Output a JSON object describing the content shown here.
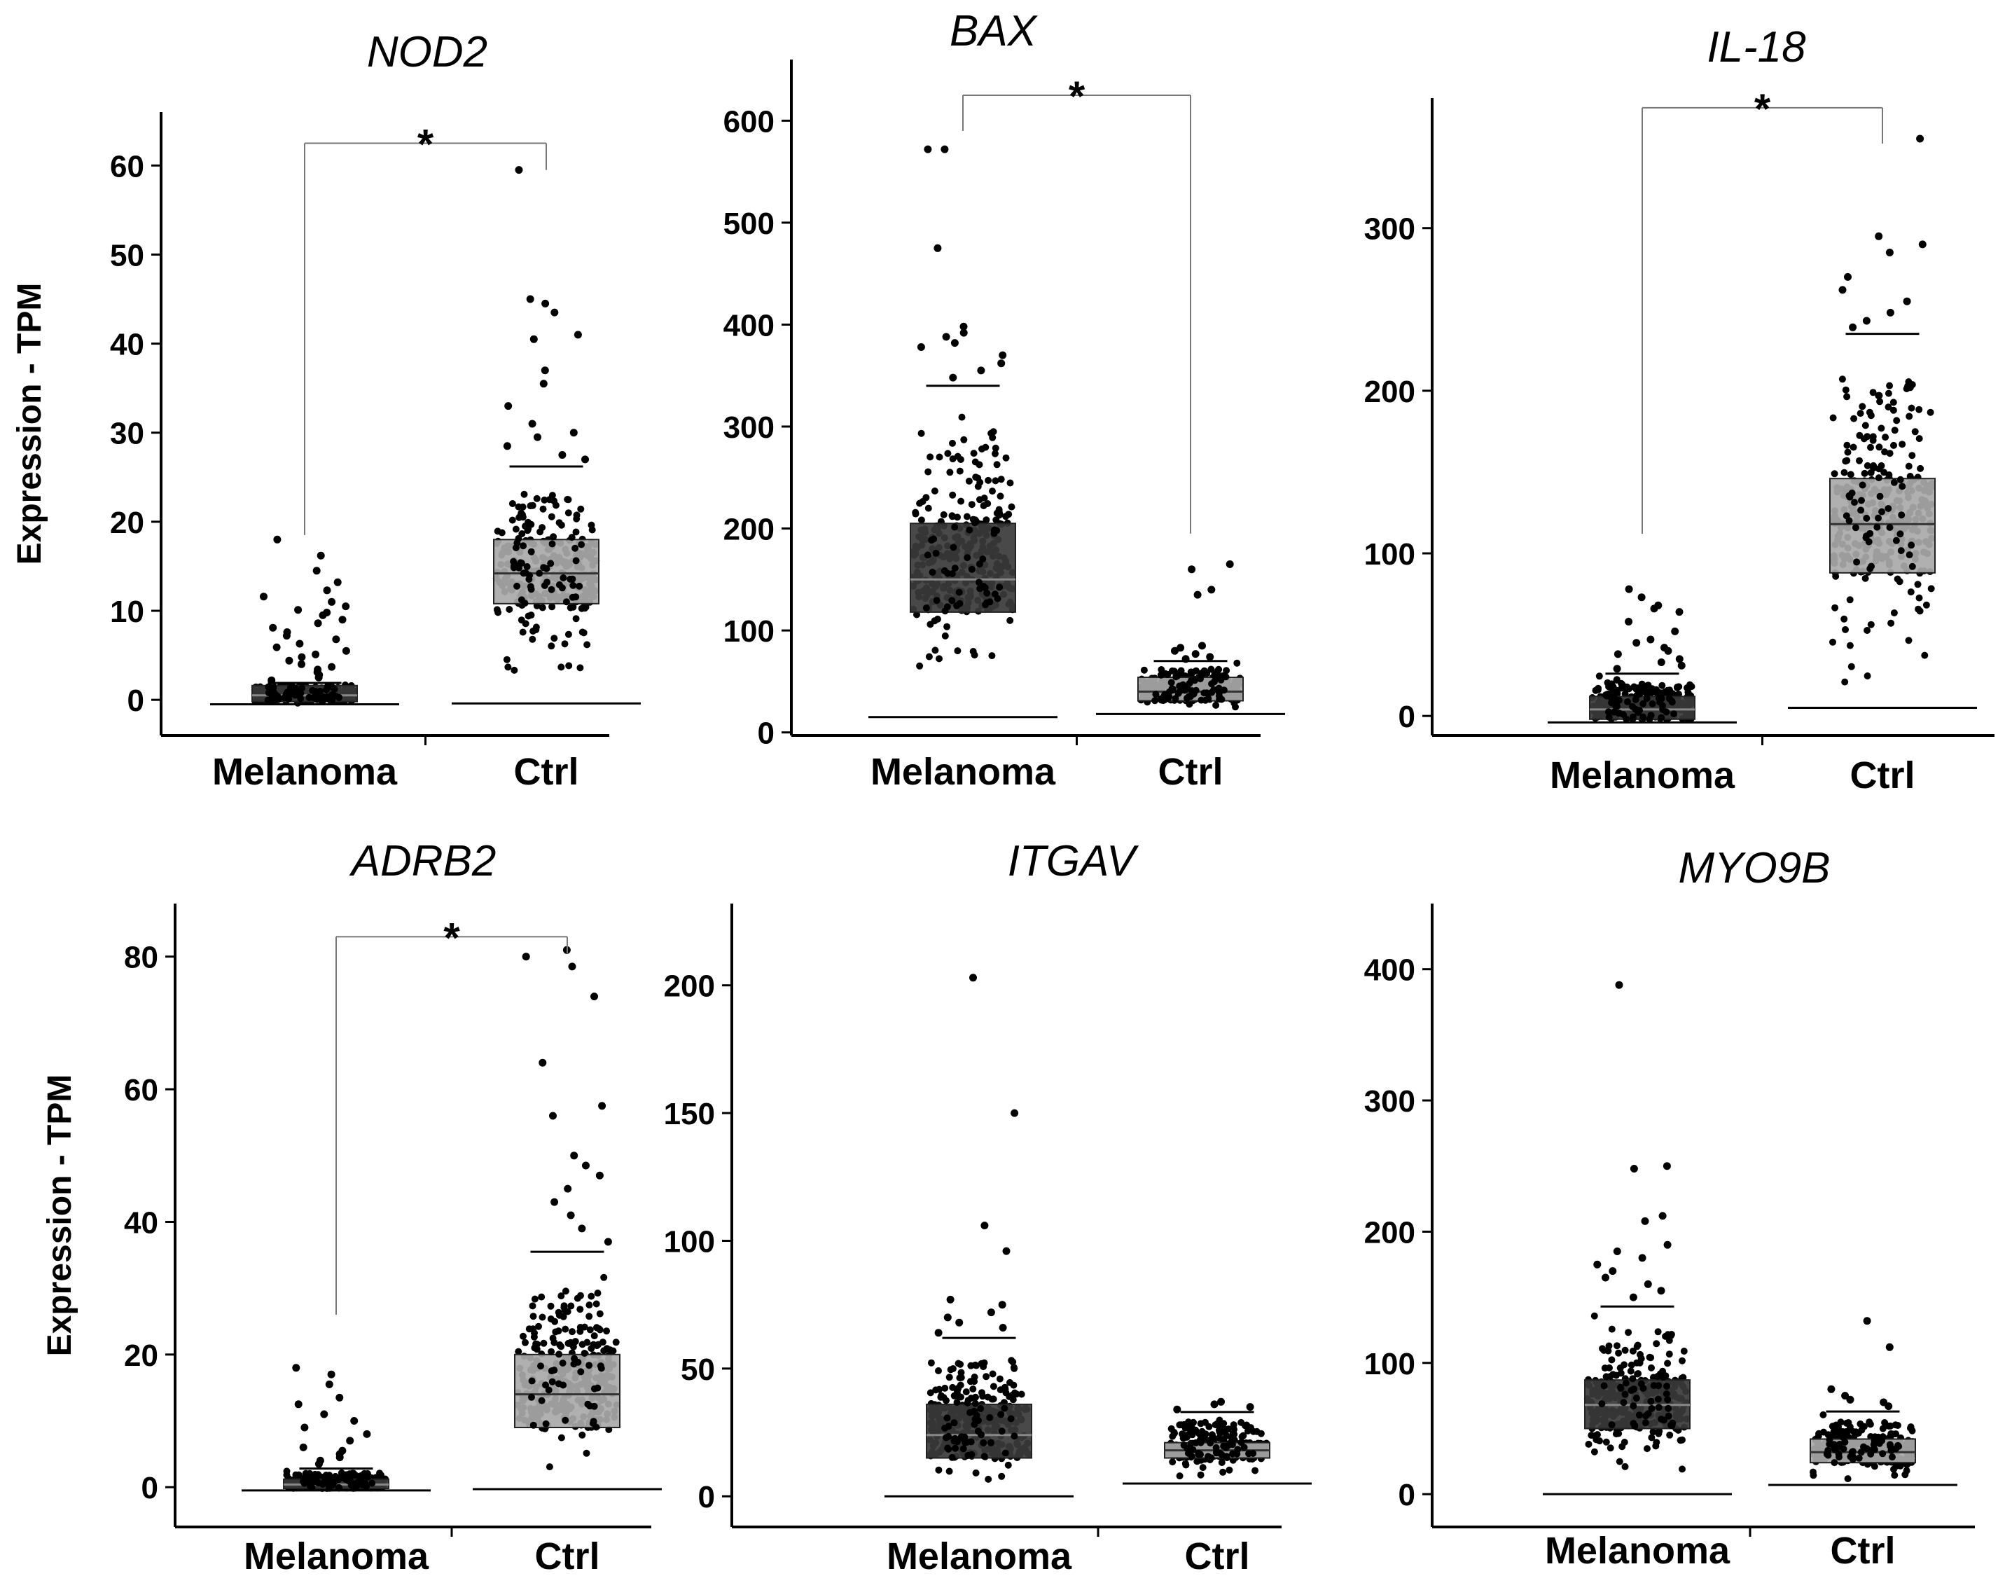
{
  "figure": {
    "background": "#ffffff",
    "colors": {
      "melanoma_box": "#3a3a3a",
      "ctrl_box": "#a9a9a9",
      "points": "#000000",
      "axis": "#000000",
      "bracket": "#777777"
    }
  },
  "chart_data": [
    {
      "type": "box",
      "title": "NOD2",
      "ylabel": "Expression - TPM",
      "categories": [
        "Melanoma",
        "Ctrl"
      ],
      "ylim": [
        -4,
        66
      ],
      "yticks": [
        0,
        10,
        20,
        30,
        40,
        50,
        60
      ],
      "series": [
        {
          "name": "Melanoma",
          "q1": -0.2,
          "median": 0.5,
          "q3": 1.6,
          "whisker_low": -0.5,
          "whisker_high": 1.9,
          "outliers": [
            18.0,
            16.2,
            14.5,
            13.2,
            12.3,
            11.6,
            11.0,
            10.5,
            10.1,
            9.8,
            9.5,
            9.0,
            8.6,
            8.1,
            7.6,
            7.2,
            6.8,
            6.3,
            5.9,
            5.5,
            5.1,
            4.8,
            4.4,
            4.0,
            3.7,
            3.4,
            3.1,
            2.8,
            2.5,
            2.2
          ]
        },
        {
          "name": "Ctrl",
          "q1": 10.8,
          "median": 14.2,
          "q3": 18.0,
          "whisker_low": -0.4,
          "whisker_high": 26.2,
          "outliers": [
            59.5,
            45.0,
            44.5,
            43.5,
            41.0,
            40.5,
            37.0,
            35.5,
            33.0,
            31.0,
            30.0,
            29.5,
            28.5,
            27.5,
            27.0
          ]
        }
      ],
      "significance": {
        "label": "*",
        "from": "Melanoma",
        "to": "Ctrl",
        "y_start": [
          18.5,
          59.5
        ],
        "y_bar": 62.5
      }
    },
    {
      "type": "box",
      "title": "BAX",
      "categories": [
        "Melanoma",
        "Ctrl"
      ],
      "ylim": [
        -3,
        660
      ],
      "yticks": [
        0,
        100,
        200,
        300,
        400,
        500,
        600
      ],
      "series": [
        {
          "name": "Melanoma",
          "q1": 118,
          "median": 150,
          "q3": 205,
          "whisker_low": 15,
          "whisker_high": 340,
          "outliers": [
            572,
            572,
            475,
            398,
            392,
            388,
            382,
            378,
            370,
            362,
            355,
            348
          ]
        },
        {
          "name": "Ctrl",
          "q1": 31,
          "median": 40,
          "q3": 54,
          "whisker_low": 18,
          "whisker_high": 70,
          "outliers": [
            165,
            160,
            140,
            135,
            85,
            83,
            80,
            77,
            74,
            72
          ]
        }
      ],
      "significance": {
        "label": "*",
        "from": "Melanoma",
        "to": "Ctrl",
        "y_start": [
          590,
          195
        ],
        "y_bar": 625
      }
    },
    {
      "type": "box",
      "title": "IL-18",
      "categories": [
        "Melanoma",
        "Ctrl"
      ],
      "ylim": [
        -12,
        380
      ],
      "yticks": [
        0,
        100,
        200,
        300
      ],
      "series": [
        {
          "name": "Melanoma",
          "q1": -2,
          "median": 4,
          "q3": 12,
          "whisker_low": -4,
          "whisker_high": 26,
          "outliers": [
            78,
            73,
            68,
            66,
            64,
            58,
            52,
            47,
            45,
            42,
            40,
            38,
            35,
            33,
            31,
            29
          ]
        },
        {
          "name": "Ctrl",
          "q1": 88,
          "median": 118,
          "q3": 146,
          "whisker_low": 5,
          "whisker_high": 235,
          "outliers": [
            355,
            295,
            290,
            285,
            270,
            262,
            255,
            248,
            243,
            239
          ]
        }
      ],
      "significance": {
        "label": "*",
        "from": "Melanoma",
        "to": "Ctrl",
        "y_start": [
          112,
          352
        ],
        "y_bar": 374
      }
    },
    {
      "type": "box",
      "title": "ADRB2",
      "ylabel": "Expression - TPM",
      "categories": [
        "Melanoma",
        "Ctrl"
      ],
      "ylim": [
        -6,
        88
      ],
      "yticks": [
        0,
        20,
        40,
        60,
        80
      ],
      "series": [
        {
          "name": "Melanoma",
          "q1": -0.2,
          "median": 0.4,
          "q3": 1.2,
          "whisker_low": -0.5,
          "whisker_high": 2.8,
          "outliers": [
            18.0,
            17.0,
            15.5,
            13.5,
            12.5,
            11.0,
            10.0,
            9.0,
            8.0,
            7.0,
            6.0,
            5.5,
            5.0,
            4.5,
            4.0,
            3.5
          ]
        },
        {
          "name": "Ctrl",
          "q1": 9.0,
          "median": 14.0,
          "q3": 20.0,
          "whisker_low": -0.3,
          "whisker_high": 35.5,
          "outliers": [
            81.0,
            80.0,
            78.5,
            74.0,
            64.0,
            57.5,
            56.0,
            50.0,
            48.5,
            47.0,
            45.0,
            43.0,
            41.0,
            39.0,
            37.0
          ]
        }
      ],
      "significance": {
        "label": "*",
        "from": "Melanoma",
        "to": "Ctrl",
        "y_start": [
          26,
          80.5
        ],
        "y_bar": 83
      }
    },
    {
      "type": "box",
      "title": "ITGAV",
      "categories": [
        "Melanoma",
        "Ctrl"
      ],
      "ylim": [
        -12,
        232
      ],
      "yticks": [
        0,
        50,
        100,
        150,
        200
      ],
      "series": [
        {
          "name": "Melanoma",
          "q1": 15,
          "median": 24,
          "q3": 36,
          "whisker_low": 0,
          "whisker_high": 62,
          "outliers": [
            203,
            150,
            106,
            96,
            77,
            75,
            72,
            70,
            68,
            66,
            64
          ]
        },
        {
          "name": "Ctrl",
          "q1": 15,
          "median": 18,
          "q3": 21,
          "whisker_low": 5,
          "whisker_high": 33,
          "outliers": [
            37,
            36,
            35,
            34
          ]
        }
      ]
    },
    {
      "type": "box",
      "title": "MYO9B",
      "categories": [
        "Melanoma",
        "Ctrl"
      ],
      "ylim": [
        -25,
        450
      ],
      "yticks": [
        0,
        100,
        200,
        300,
        400
      ],
      "series": [
        {
          "name": "Melanoma",
          "q1": 50,
          "median": 68,
          "q3": 87,
          "whisker_low": 0,
          "whisker_high": 143,
          "outliers": [
            388,
            250,
            248,
            212,
            208,
            190,
            185,
            180,
            175,
            170,
            165,
            160,
            155,
            150
          ]
        },
        {
          "name": "Ctrl",
          "q1": 24,
          "median": 32,
          "q3": 42,
          "whisker_low": 7,
          "whisker_high": 63,
          "outliers": [
            132,
            112,
            80,
            75,
            72,
            70,
            67
          ]
        }
      ]
    }
  ]
}
